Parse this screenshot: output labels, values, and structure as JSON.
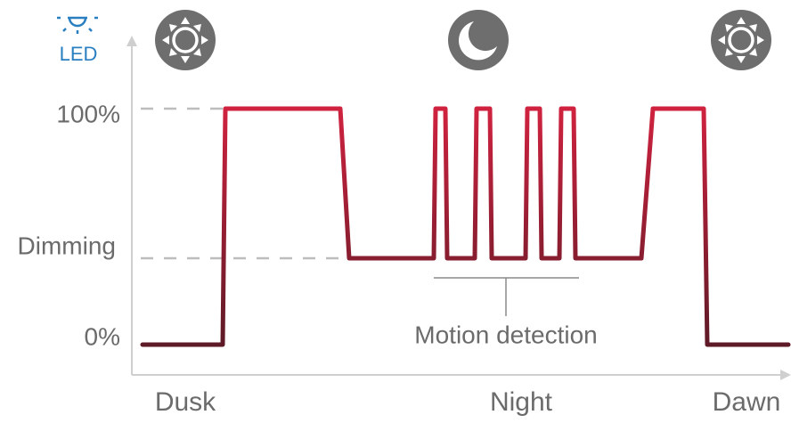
{
  "icon_label": "LED",
  "levels": {
    "full": "100%",
    "dimming": "Dimming",
    "off": "0%"
  },
  "annotation": "Motion detection",
  "phases": {
    "dusk": "Dusk",
    "night": "Night",
    "dawn": "Dawn"
  }
}
